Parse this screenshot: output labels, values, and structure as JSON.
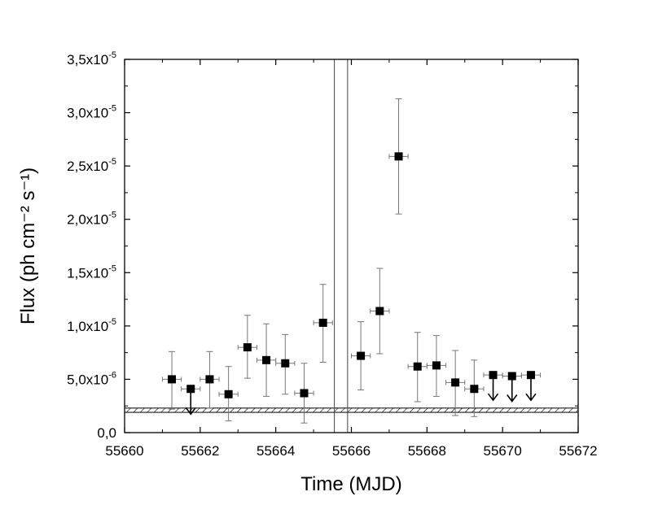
{
  "chart_data": {
    "type": "scatter",
    "xlabel": "Time (MJD)",
    "ylabel": "Flux (ph cm⁻² s⁻¹)",
    "xlim": [
      55660,
      55672
    ],
    "ylim": [
      0,
      3.5e-05
    ],
    "x_ticks": [
      55660,
      55662,
      55664,
      55666,
      55668,
      55670,
      55672
    ],
    "x_tick_labels": [
      "55660",
      "55662",
      "55664",
      "55666",
      "55668",
      "55670",
      "55672"
    ],
    "y_ticks": [
      0,
      5e-06,
      1e-05,
      1.5e-05,
      2e-05,
      2.5e-05,
      3e-05,
      3.5e-05
    ],
    "y_tick_labels": [
      {
        "mant": "0,0",
        "exp": ""
      },
      {
        "mant": "5,0x10",
        "exp": "-6"
      },
      {
        "mant": "1,0x10",
        "exp": "-5"
      },
      {
        "mant": "1,5x10",
        "exp": "-5"
      },
      {
        "mant": "2,0x10",
        "exp": "-5"
      },
      {
        "mant": "2,5x10",
        "exp": "-5"
      },
      {
        "mant": "3,0x10",
        "exp": "-5"
      },
      {
        "mant": "3,5x10",
        "exp": "-5"
      }
    ],
    "points": [
      {
        "x": 55661.25,
        "y": 5e-06,
        "xerr": 0.25,
        "ylo": 2.2e-06,
        "yhi": 7.6e-06
      },
      {
        "x": 55662.25,
        "y": 5e-06,
        "xerr": 0.25,
        "ylo": 2.3e-06,
        "yhi": 7.6e-06
      },
      {
        "x": 55662.75,
        "y": 3.6e-06,
        "xerr": 0.25,
        "ylo": 1.1e-06,
        "yhi": 6.2e-06
      },
      {
        "x": 55663.25,
        "y": 8e-06,
        "xerr": 0.25,
        "ylo": 5.1e-06,
        "yhi": 1.1e-05
      },
      {
        "x": 55663.75,
        "y": 6.8e-06,
        "xerr": 0.25,
        "ylo": 3.4e-06,
        "yhi": 1.02e-05
      },
      {
        "x": 55664.25,
        "y": 6.5e-06,
        "xerr": 0.25,
        "ylo": 3.6e-06,
        "yhi": 9.2e-06
      },
      {
        "x": 55664.75,
        "y": 3.7e-06,
        "xerr": 0.25,
        "ylo": 9e-07,
        "yhi": 6.5e-06
      },
      {
        "x": 55665.25,
        "y": 1.03e-05,
        "xerr": 0.25,
        "ylo": 6.6e-06,
        "yhi": 1.39e-05
      },
      {
        "x": 55666.25,
        "y": 7.2e-06,
        "xerr": 0.25,
        "ylo": 4e-06,
        "yhi": 1.04e-05
      },
      {
        "x": 55666.75,
        "y": 1.14e-05,
        "xerr": 0.25,
        "ylo": 7.4e-06,
        "yhi": 1.54e-05
      },
      {
        "x": 55667.25,
        "y": 2.59e-05,
        "xerr": 0.25,
        "ylo": 2.05e-05,
        "yhi": 3.13e-05
      },
      {
        "x": 55667.75,
        "y": 6.2e-06,
        "xerr": 0.25,
        "ylo": 2.9e-06,
        "yhi": 9.4e-06
      },
      {
        "x": 55668.25,
        "y": 6.3e-06,
        "xerr": 0.25,
        "ylo": 3.4e-06,
        "yhi": 9.1e-06
      },
      {
        "x": 55668.75,
        "y": 4.7e-06,
        "xerr": 0.25,
        "ylo": 1.6e-06,
        "yhi": 7.7e-06
      },
      {
        "x": 55669.25,
        "y": 4.1e-06,
        "xerr": 0.25,
        "ylo": 1.5e-06,
        "yhi": 6.8e-06
      }
    ],
    "upper_limits": [
      {
        "x": 55661.75,
        "y": 4.1e-06,
        "xerr": 0.25
      },
      {
        "x": 55669.75,
        "y": 5.4e-06,
        "xerr": 0.25
      },
      {
        "x": 55670.25,
        "y": 5.3e-06,
        "xerr": 0.25
      },
      {
        "x": 55670.75,
        "y": 5.4e-06,
        "xerr": 0.25
      }
    ],
    "vertical_lines": [
      55665.55,
      55665.9
    ],
    "hatched_band": [
      1.9e-06,
      2.3e-06
    ],
    "grid": false,
    "colors": {
      "marker": "#000000",
      "errorbar": "#777777",
      "axis": "#000000"
    }
  }
}
